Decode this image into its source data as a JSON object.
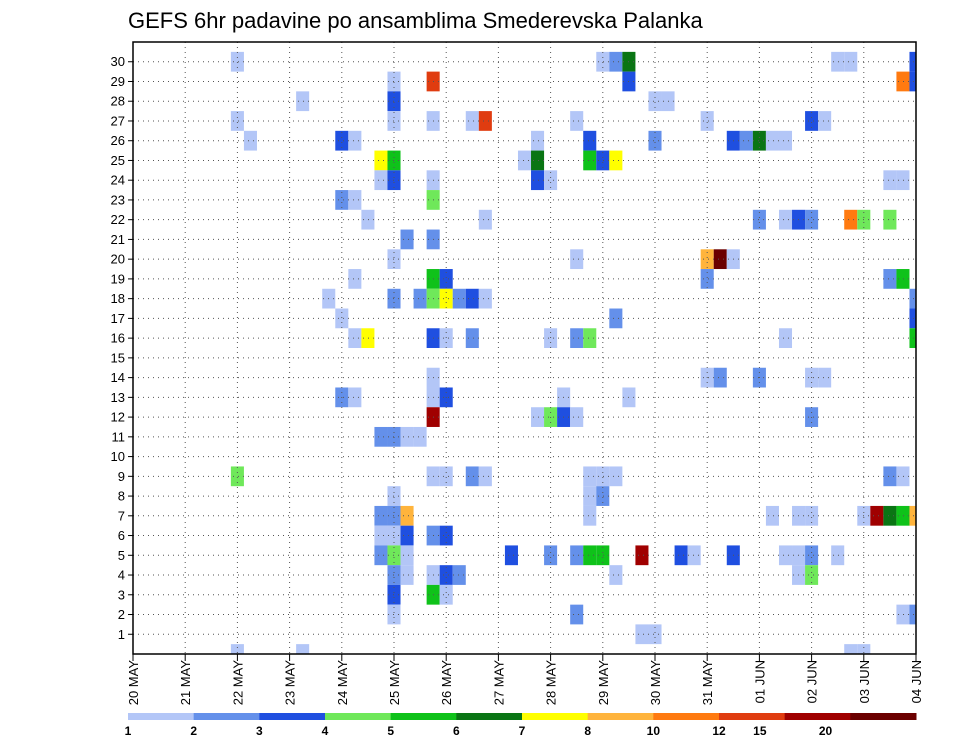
{
  "chart_data": {
    "type": "heatmap",
    "title": "GEFS 6hr padavine po ansamblima Smederevska Palanka",
    "xlabel": "",
    "ylabel": "",
    "x_tick_labels": [
      "20 MAY",
      "21 MAY",
      "22 MAY",
      "23 MAY",
      "24 MAY",
      "25 MAY",
      "26 MAY",
      "27 MAY",
      "28 MAY",
      "29 MAY",
      "30 MAY",
      "31 MAY",
      "01 JUN",
      "02 JUN",
      "03 JUN",
      "04 JUN"
    ],
    "y_tick_labels": [
      "1",
      "2",
      "3",
      "4",
      "5",
      "6",
      "7",
      "8",
      "9",
      "10",
      "11",
      "12",
      "13",
      "14",
      "15",
      "16",
      "17",
      "18",
      "19",
      "20",
      "21",
      "22",
      "23",
      "24",
      "25",
      "26",
      "27",
      "28",
      "29",
      "30"
    ],
    "time_steps_per_day": 4,
    "grid": true,
    "legend": {
      "placement": "bottom",
      "bounds": [
        1,
        2,
        3,
        4,
        5,
        6,
        7,
        8,
        10,
        12,
        15,
        20
      ],
      "labels": [
        "1",
        "2",
        "3",
        "4",
        "5",
        "6",
        "7",
        "8",
        "10",
        "12",
        "15",
        "20"
      ],
      "colors": [
        "#b3c6f7",
        "#6490ea",
        "#1f4fe0",
        "#6fe85a",
        "#0fc21a",
        "#0a7514",
        "#ffff00",
        "#ffb43c",
        "#ff7a10",
        "#e03c10",
        "#a00000",
        "#6b0000"
      ]
    },
    "cells": [
      {
        "member": 30,
        "step": 8,
        "level": 1
      },
      {
        "member": 30,
        "step": 36,
        "level": 1
      },
      {
        "member": 30,
        "step": 37,
        "level": 2
      },
      {
        "member": 30,
        "step": 38,
        "level": 6
      },
      {
        "member": 30,
        "step": 54,
        "level": 1
      },
      {
        "member": 30,
        "step": 55,
        "level": 1
      },
      {
        "member": 30,
        "step": 60,
        "level": 3
      },
      {
        "member": 29,
        "step": 20,
        "level": 1
      },
      {
        "member": 29,
        "step": 23,
        "level": 10
      },
      {
        "member": 29,
        "step": 38,
        "level": 3
      },
      {
        "member": 29,
        "step": 59,
        "level": 9
      },
      {
        "member": 29,
        "step": 60,
        "level": 3
      },
      {
        "member": 28,
        "step": 13,
        "level": 1
      },
      {
        "member": 28,
        "step": 20,
        "level": 3
      },
      {
        "member": 28,
        "step": 40,
        "level": 1
      },
      {
        "member": 28,
        "step": 41,
        "level": 1
      },
      {
        "member": 27,
        "step": 8,
        "level": 1
      },
      {
        "member": 27,
        "step": 20,
        "level": 1
      },
      {
        "member": 27,
        "step": 23,
        "level": 1
      },
      {
        "member": 27,
        "step": 26,
        "level": 1
      },
      {
        "member": 27,
        "step": 27,
        "level": 10
      },
      {
        "member": 27,
        "step": 34,
        "level": 1
      },
      {
        "member": 27,
        "step": 44,
        "level": 1
      },
      {
        "member": 27,
        "step": 52,
        "level": 3
      },
      {
        "member": 27,
        "step": 53,
        "level": 1
      },
      {
        "member": 26,
        "step": 9,
        "level": 1
      },
      {
        "member": 26,
        "step": 16,
        "level": 3
      },
      {
        "member": 26,
        "step": 17,
        "level": 1
      },
      {
        "member": 26,
        "step": 31,
        "level": 1
      },
      {
        "member": 26,
        "step": 35,
        "level": 3
      },
      {
        "member": 26,
        "step": 40,
        "level": 2
      },
      {
        "member": 26,
        "step": 46,
        "level": 3
      },
      {
        "member": 26,
        "step": 47,
        "level": 2
      },
      {
        "member": 26,
        "step": 48,
        "level": 6
      },
      {
        "member": 26,
        "step": 49,
        "level": 1
      },
      {
        "member": 26,
        "step": 50,
        "level": 1
      },
      {
        "member": 25,
        "step": 19,
        "level": 7
      },
      {
        "member": 25,
        "step": 20,
        "level": 5
      },
      {
        "member": 25,
        "step": 30,
        "level": 1
      },
      {
        "member": 25,
        "step": 31,
        "level": 6
      },
      {
        "member": 25,
        "step": 35,
        "level": 5
      },
      {
        "member": 25,
        "step": 36,
        "level": 3
      },
      {
        "member": 25,
        "step": 37,
        "level": 7
      },
      {
        "member": 24,
        "step": 19,
        "level": 1
      },
      {
        "member": 24,
        "step": 20,
        "level": 3
      },
      {
        "member": 24,
        "step": 23,
        "level": 1
      },
      {
        "member": 24,
        "step": 31,
        "level": 3
      },
      {
        "member": 24,
        "step": 32,
        "level": 1
      },
      {
        "member": 24,
        "step": 58,
        "level": 1
      },
      {
        "member": 24,
        "step": 59,
        "level": 1
      },
      {
        "member": 23,
        "step": 16,
        "level": 2
      },
      {
        "member": 23,
        "step": 17,
        "level": 1
      },
      {
        "member": 23,
        "step": 23,
        "level": 4
      },
      {
        "member": 22,
        "step": 18,
        "level": 1
      },
      {
        "member": 22,
        "step": 27,
        "level": 1
      },
      {
        "member": 22,
        "step": 48,
        "level": 2
      },
      {
        "member": 22,
        "step": 50,
        "level": 1
      },
      {
        "member": 22,
        "step": 51,
        "level": 3
      },
      {
        "member": 22,
        "step": 52,
        "level": 2
      },
      {
        "member": 22,
        "step": 55,
        "level": 9
      },
      {
        "member": 22,
        "step": 56,
        "level": 4
      },
      {
        "member": 22,
        "step": 58,
        "level": 4
      },
      {
        "member": 21,
        "step": 21,
        "level": 2
      },
      {
        "member": 21,
        "step": 23,
        "level": 2
      },
      {
        "member": 20,
        "step": 20,
        "level": 1
      },
      {
        "member": 20,
        "step": 34,
        "level": 1
      },
      {
        "member": 20,
        "step": 44,
        "level": 8
      },
      {
        "member": 20,
        "step": 45,
        "level": 12
      },
      {
        "member": 20,
        "step": 46,
        "level": 1
      },
      {
        "member": 19,
        "step": 17,
        "level": 1
      },
      {
        "member": 19,
        "step": 23,
        "level": 5
      },
      {
        "member": 19,
        "step": 24,
        "level": 3
      },
      {
        "member": 19,
        "step": 44,
        "level": 2
      },
      {
        "member": 19,
        "step": 58,
        "level": 2
      },
      {
        "member": 19,
        "step": 59,
        "level": 5
      },
      {
        "member": 18,
        "step": 15,
        "level": 1
      },
      {
        "member": 18,
        "step": 20,
        "level": 2
      },
      {
        "member": 18,
        "step": 22,
        "level": 2
      },
      {
        "member": 18,
        "step": 23,
        "level": 4
      },
      {
        "member": 18,
        "step": 24,
        "level": 7
      },
      {
        "member": 18,
        "step": 25,
        "level": 2
      },
      {
        "member": 18,
        "step": 26,
        "level": 3
      },
      {
        "member": 18,
        "step": 27,
        "level": 1
      },
      {
        "member": 18,
        "step": 60,
        "level": 2
      },
      {
        "member": 17,
        "step": 16,
        "level": 1
      },
      {
        "member": 17,
        "step": 37,
        "level": 2
      },
      {
        "member": 17,
        "step": 60,
        "level": 3
      },
      {
        "member": 16,
        "step": 17,
        "level": 1
      },
      {
        "member": 16,
        "step": 18,
        "level": 7
      },
      {
        "member": 16,
        "step": 23,
        "level": 3
      },
      {
        "member": 16,
        "step": 24,
        "level": 1
      },
      {
        "member": 16,
        "step": 26,
        "level": 2
      },
      {
        "member": 16,
        "step": 32,
        "level": 1
      },
      {
        "member": 16,
        "step": 34,
        "level": 2
      },
      {
        "member": 16,
        "step": 35,
        "level": 4
      },
      {
        "member": 16,
        "step": 50,
        "level": 1
      },
      {
        "member": 16,
        "step": 60,
        "level": 5
      },
      {
        "member": 14,
        "step": 23,
        "level": 1
      },
      {
        "member": 14,
        "step": 44,
        "level": 1
      },
      {
        "member": 14,
        "step": 45,
        "level": 2
      },
      {
        "member": 14,
        "step": 48,
        "level": 2
      },
      {
        "member": 14,
        "step": 52,
        "level": 1
      },
      {
        "member": 14,
        "step": 53,
        "level": 1
      },
      {
        "member": 13,
        "step": 16,
        "level": 2
      },
      {
        "member": 13,
        "step": 17,
        "level": 1
      },
      {
        "member": 13,
        "step": 23,
        "level": 1
      },
      {
        "member": 13,
        "step": 24,
        "level": 3
      },
      {
        "member": 13,
        "step": 33,
        "level": 1
      },
      {
        "member": 13,
        "step": 38,
        "level": 1
      },
      {
        "member": 12,
        "step": 23,
        "level": 11
      },
      {
        "member": 12,
        "step": 31,
        "level": 1
      },
      {
        "member": 12,
        "step": 32,
        "level": 4
      },
      {
        "member": 12,
        "step": 33,
        "level": 3
      },
      {
        "member": 12,
        "step": 34,
        "level": 1
      },
      {
        "member": 12,
        "step": 52,
        "level": 2
      },
      {
        "member": 11,
        "step": 19,
        "level": 2
      },
      {
        "member": 11,
        "step": 20,
        "level": 2
      },
      {
        "member": 11,
        "step": 21,
        "level": 1
      },
      {
        "member": 11,
        "step": 22,
        "level": 1
      },
      {
        "member": 9,
        "step": 8,
        "level": 4
      },
      {
        "member": 9,
        "step": 23,
        "level": 1
      },
      {
        "member": 9,
        "step": 24,
        "level": 1
      },
      {
        "member": 9,
        "step": 26,
        "level": 2
      },
      {
        "member": 9,
        "step": 27,
        "level": 1
      },
      {
        "member": 9,
        "step": 35,
        "level": 1
      },
      {
        "member": 9,
        "step": 36,
        "level": 1
      },
      {
        "member": 9,
        "step": 37,
        "level": 1
      },
      {
        "member": 9,
        "step": 58,
        "level": 2
      },
      {
        "member": 9,
        "step": 59,
        "level": 1
      },
      {
        "member": 8,
        "step": 20,
        "level": 1
      },
      {
        "member": 8,
        "step": 35,
        "level": 1
      },
      {
        "member": 8,
        "step": 36,
        "level": 2
      },
      {
        "member": 7,
        "step": 19,
        "level": 2
      },
      {
        "member": 7,
        "step": 20,
        "level": 2
      },
      {
        "member": 7,
        "step": 21,
        "level": 8
      },
      {
        "member": 7,
        "step": 35,
        "level": 1
      },
      {
        "member": 7,
        "step": 49,
        "level": 1
      },
      {
        "member": 7,
        "step": 51,
        "level": 1
      },
      {
        "member": 7,
        "step": 52,
        "level": 1
      },
      {
        "member": 7,
        "step": 56,
        "level": 1
      },
      {
        "member": 7,
        "step": 57,
        "level": 11
      },
      {
        "member": 7,
        "step": 58,
        "level": 6
      },
      {
        "member": 7,
        "step": 59,
        "level": 5
      },
      {
        "member": 7,
        "step": 60,
        "level": 8
      },
      {
        "member": 6,
        "step": 19,
        "level": 1
      },
      {
        "member": 6,
        "step": 20,
        "level": 1
      },
      {
        "member": 6,
        "step": 21,
        "level": 3
      },
      {
        "member": 6,
        "step": 23,
        "level": 2
      },
      {
        "member": 6,
        "step": 24,
        "level": 3
      },
      {
        "member": 5,
        "step": 19,
        "level": 2
      },
      {
        "member": 5,
        "step": 20,
        "level": 4
      },
      {
        "member": 5,
        "step": 21,
        "level": 1
      },
      {
        "member": 5,
        "step": 29,
        "level": 3
      },
      {
        "member": 5,
        "step": 32,
        "level": 2
      },
      {
        "member": 5,
        "step": 34,
        "level": 2
      },
      {
        "member": 5,
        "step": 35,
        "level": 5
      },
      {
        "member": 5,
        "step": 36,
        "level": 5
      },
      {
        "member": 5,
        "step": 39,
        "level": 11
      },
      {
        "member": 5,
        "step": 42,
        "level": 3
      },
      {
        "member": 5,
        "step": 43,
        "level": 1
      },
      {
        "member": 5,
        "step": 46,
        "level": 3
      },
      {
        "member": 5,
        "step": 50,
        "level": 1
      },
      {
        "member": 5,
        "step": 51,
        "level": 1
      },
      {
        "member": 5,
        "step": 52,
        "level": 2
      },
      {
        "member": 5,
        "step": 54,
        "level": 1
      },
      {
        "member": 4,
        "step": 20,
        "level": 2
      },
      {
        "member": 4,
        "step": 21,
        "level": 1
      },
      {
        "member": 4,
        "step": 23,
        "level": 1
      },
      {
        "member": 4,
        "step": 24,
        "level": 3
      },
      {
        "member": 4,
        "step": 25,
        "level": 2
      },
      {
        "member": 4,
        "step": 37,
        "level": 1
      },
      {
        "member": 4,
        "step": 51,
        "level": 1
      },
      {
        "member": 4,
        "step": 52,
        "level": 4
      },
      {
        "member": 3,
        "step": 20,
        "level": 3
      },
      {
        "member": 3,
        "step": 23,
        "level": 5
      },
      {
        "member": 3,
        "step": 24,
        "level": 1
      },
      {
        "member": 2,
        "step": 20,
        "level": 1
      },
      {
        "member": 2,
        "step": 34,
        "level": 2
      },
      {
        "member": 2,
        "step": 59,
        "level": 1
      },
      {
        "member": 2,
        "step": 60,
        "level": 2
      },
      {
        "member": 1,
        "step": 39,
        "level": 1
      },
      {
        "member": 1,
        "step": 40,
        "level": 1
      },
      {
        "member": 0,
        "step": 8,
        "level": 1
      },
      {
        "member": 0,
        "step": 13,
        "level": 1
      },
      {
        "member": 0,
        "step": 55,
        "level": 1
      },
      {
        "member": 0,
        "step": 56,
        "level": 1
      }
    ]
  }
}
